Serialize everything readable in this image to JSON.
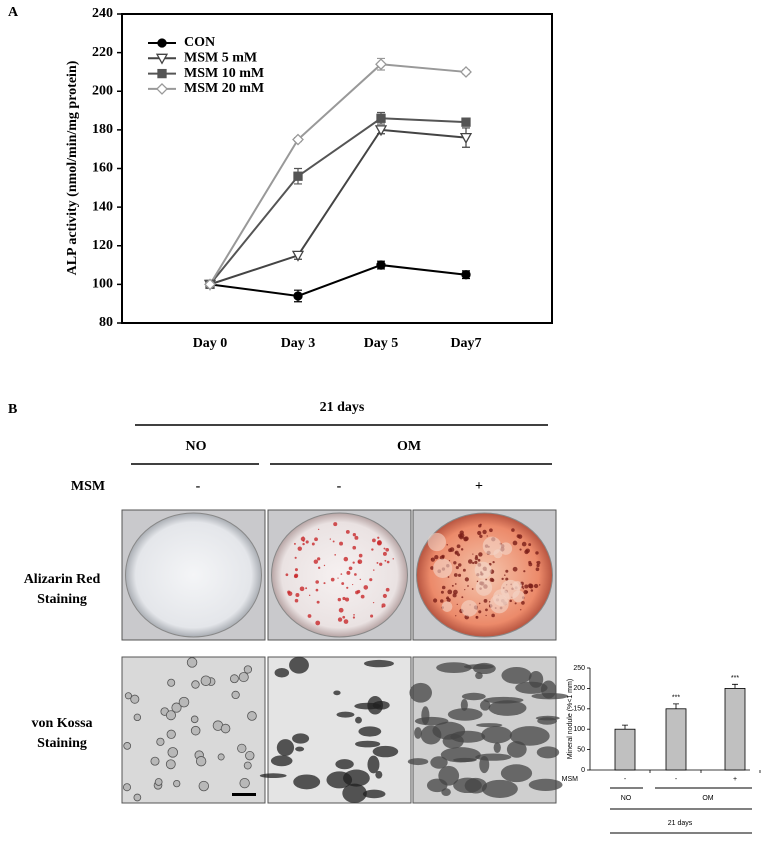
{
  "chart_data": [
    {
      "type": "line",
      "panel": "A",
      "ylabel": "ALP activity (nmol/min/mg protein)",
      "categories": [
        "Day 0",
        "Day 3",
        "Day 5",
        "Day7"
      ],
      "ylim": [
        80,
        240
      ],
      "yticks": [
        80,
        100,
        120,
        140,
        160,
        180,
        200,
        220,
        240
      ],
      "series": [
        {
          "name": "CON",
          "color": "#000000",
          "marker": "circle",
          "filled": true,
          "values": [
            100,
            94,
            110,
            105
          ],
          "errors": [
            1,
            3,
            2,
            2
          ]
        },
        {
          "name": "MSM  5 mM",
          "color": "#444444",
          "marker": "triangle-down",
          "filled": false,
          "values": [
            100,
            115,
            180,
            176
          ],
          "errors": [
            1,
            2,
            2,
            5
          ]
        },
        {
          "name": "MSM 10 mM",
          "color": "#555555",
          "marker": "square",
          "filled": true,
          "values": [
            100,
            156,
            186,
            184
          ],
          "errors": [
            1,
            4,
            3,
            2
          ]
        },
        {
          "name": "MSM 20 mM",
          "color": "#999999",
          "marker": "diamond",
          "filled": false,
          "values": [
            100,
            175,
            214,
            210
          ],
          "errors": [
            1,
            1,
            3,
            1
          ]
        }
      ]
    },
    {
      "type": "bar",
      "ylabel": "Mineral nodule (%<1 mm)",
      "x_label": "MSM",
      "categories": [
        "-",
        "-",
        "+"
      ],
      "values": [
        100,
        150,
        200
      ],
      "errors": [
        10,
        12,
        10
      ],
      "significance": [
        null,
        "***",
        "***"
      ],
      "color": "#c0c0c0",
      "ylim": [
        0,
        250
      ],
      "yticks": [
        0,
        50,
        100,
        150,
        200,
        250
      ],
      "groups": [
        "NO",
        "OM"
      ],
      "period": "21 days"
    }
  ],
  "panel_b": {
    "label": "B",
    "period": "21 days",
    "groups": [
      "NO",
      "OM"
    ],
    "msm_label": "MSM",
    "msm": [
      "-",
      "-",
      "+"
    ],
    "row_labels": [
      [
        "Alizarin Red",
        "Staining"
      ],
      [
        "von Kossa",
        "Staining"
      ]
    ]
  }
}
